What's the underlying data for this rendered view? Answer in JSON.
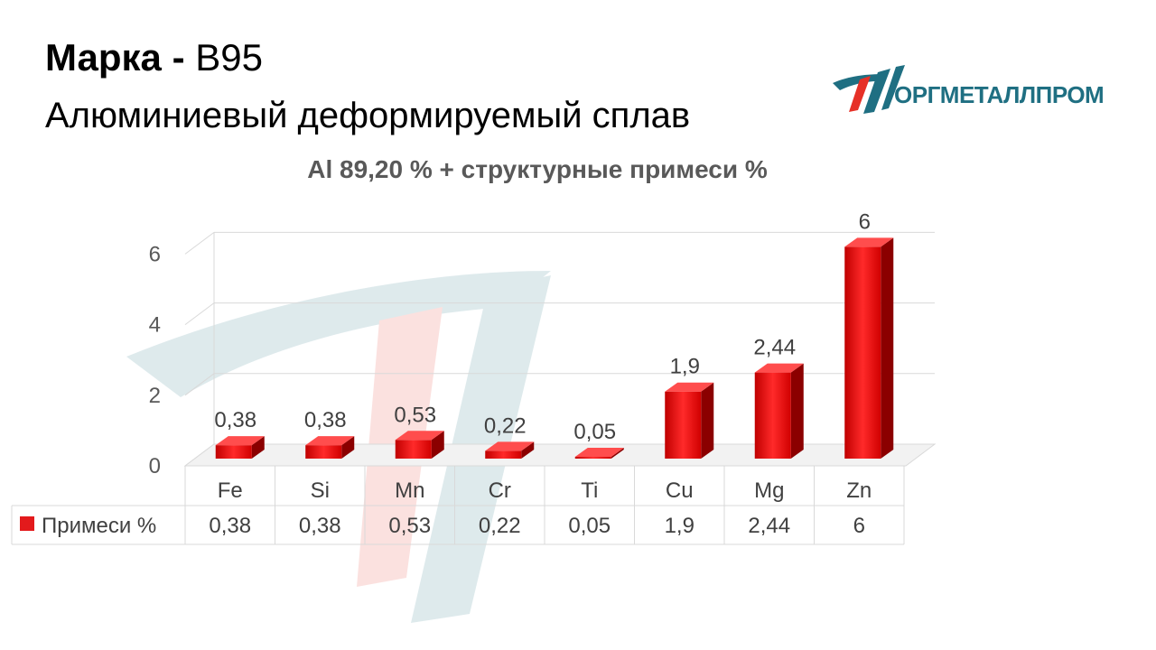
{
  "header": {
    "brand_label": "Марка",
    "separator": "-",
    "grade": "В95",
    "alloy_type": "Алюминиевый деформируемый сплав"
  },
  "logo": {
    "text": "ОРГМЕТАЛЛПРОМ",
    "colors": {
      "red": "#e63027",
      "teal": "#1f6f82"
    }
  },
  "chart_data": {
    "type": "bar",
    "title": "Al 89,20 % + структурные примеси %",
    "categories": [
      "Fe",
      "Si",
      "Mn",
      "Cr",
      "Ti",
      "Cu",
      "Mg",
      "Zn"
    ],
    "series": [
      {
        "name": "Примеси %",
        "values": [
          0.38,
          0.38,
          0.53,
          0.22,
          0.05,
          1.9,
          2.44,
          6
        ],
        "color": "#e31a1c"
      }
    ],
    "data_labels": [
      "0,38",
      "0,38",
      "0,53",
      "0,22",
      "0,05",
      "1,9",
      "2,44",
      "6"
    ],
    "ylim": [
      0,
      6
    ],
    "yticks": [
      0,
      2,
      4,
      6
    ],
    "grid": true,
    "three_d": true,
    "data_table": true
  }
}
